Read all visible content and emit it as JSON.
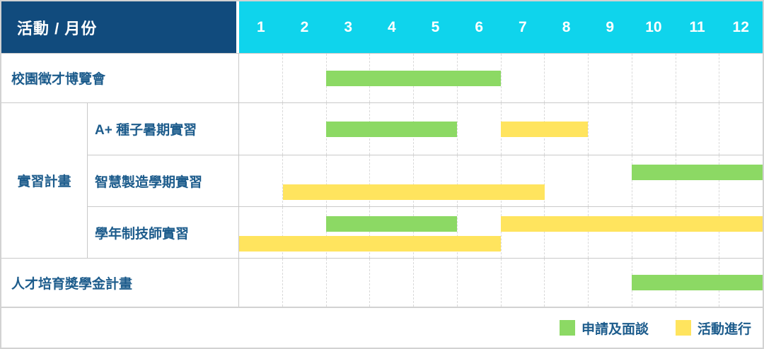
{
  "colors": {
    "navy": "#114B7D",
    "cyan": "#0FD4EC",
    "green": "#8CD964",
    "yellow": "#FFE45E",
    "label_text": "#1D5C8C",
    "row_border": "#c9c9c9",
    "grid_dash": "#d9d9d9"
  },
  "header": {
    "corner_label": "活動 / 月份",
    "months": [
      "1",
      "2",
      "3",
      "4",
      "5",
      "6",
      "7",
      "8",
      "9",
      "10",
      "11",
      "12"
    ]
  },
  "chart_data": {
    "type": "gantt",
    "x_unit": "month",
    "x_range": [
      1,
      12
    ],
    "legend_position": "bottom-right",
    "series_types": {
      "apply": "申請及面談",
      "activity": "活動進行"
    },
    "rows": [
      {
        "label": "校園徵才博覽會",
        "group": null,
        "lines": 1,
        "bars": [
          {
            "type": "apply",
            "start": 3,
            "end": 6,
            "line": 0
          }
        ]
      },
      {
        "label": "A+ 種子暑期實習",
        "group": "實習計畫",
        "lines": 1,
        "bars": [
          {
            "type": "apply",
            "start": 3,
            "end": 5,
            "line": 0
          },
          {
            "type": "activity",
            "start": 7,
            "end": 8,
            "line": 0
          }
        ]
      },
      {
        "label": "智慧製造學期實習",
        "group": "實習計畫",
        "lines": 2,
        "bars": [
          {
            "type": "apply",
            "start": 10,
            "end": 12,
            "line": 0
          },
          {
            "type": "activity",
            "start": 2,
            "end": 7,
            "line": 1
          }
        ]
      },
      {
        "label": "學年制技師實習",
        "group": "實習計畫",
        "lines": 2,
        "bars": [
          {
            "type": "apply",
            "start": 3,
            "end": 5,
            "line": 0
          },
          {
            "type": "activity",
            "start": 7,
            "end": 12,
            "line": 0
          },
          {
            "type": "activity",
            "start": 1,
            "end": 6,
            "line": 1
          }
        ]
      },
      {
        "label": "人才培育獎學金計畫",
        "group": null,
        "lines": 1,
        "bars": [
          {
            "type": "apply",
            "start": 10,
            "end": 12,
            "line": 0
          }
        ]
      }
    ]
  },
  "legend": {
    "items": [
      {
        "key": "apply",
        "label": "申請及面談"
      },
      {
        "key": "activity",
        "label": "活動進行"
      }
    ]
  }
}
